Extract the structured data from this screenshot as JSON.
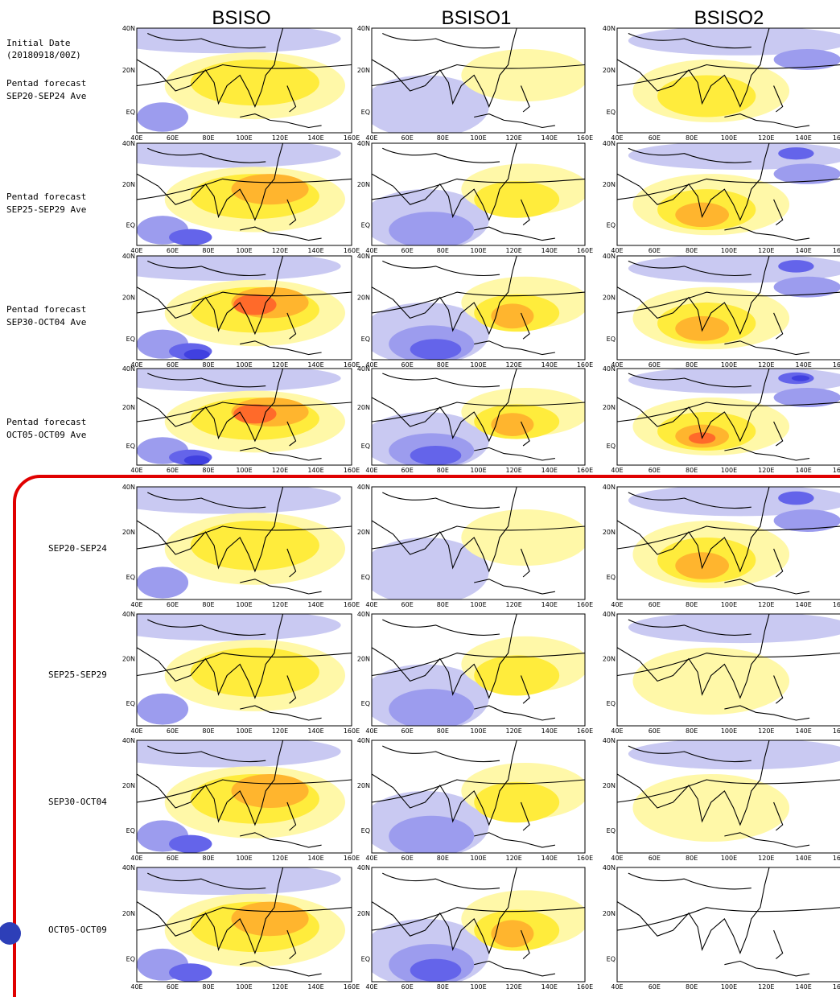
{
  "header": {
    "columns": [
      "BSISO",
      "BSISO1",
      "BSISO2"
    ]
  },
  "forecast_panel": {
    "initial_date": {
      "label": "Initial Date",
      "value": "(20180918/00Z)"
    },
    "rows": [
      {
        "kind": "Pentad forecast",
        "period": "SEP20-SEP24 Ave"
      },
      {
        "kind": "Pentad forecast",
        "period": "SEP25-SEP29 Ave"
      },
      {
        "kind": "Pentad forecast",
        "period": "SEP30-OCT04 Ave"
      },
      {
        "kind": "Pentad forecast",
        "period": "OCT05-OCT09 Ave"
      }
    ]
  },
  "lower_panel": {
    "rows": [
      "SEP20-SEP24",
      "SEP25-SEP29",
      "SEP30-OCT04",
      "OCT05-OCT09"
    ]
  },
  "map_axes": {
    "lat_labels": [
      "40N",
      "20N",
      "EQ"
    ],
    "lon_labels": [
      "40E",
      "60E",
      "80E",
      "100E",
      "120E",
      "140E",
      "160E"
    ]
  }
}
